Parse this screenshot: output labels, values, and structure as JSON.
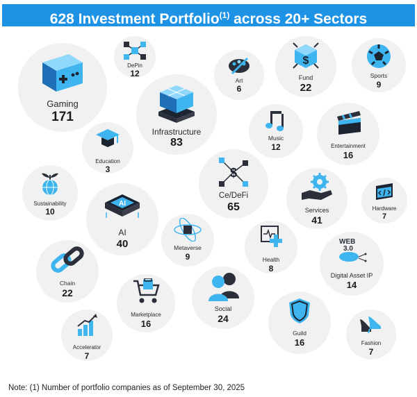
{
  "header": {
    "title_prefix": "628 Investment Portfolio",
    "title_superscript": "(1)",
    "title_suffix": " across 20+ Sectors"
  },
  "colors": {
    "banner": "#1e93e6",
    "bubble": "#f1f1f1",
    "icon_blue": "#3fb5f0",
    "icon_dark": "#2b2f3a"
  },
  "sectors": [
    {
      "key": "gaming",
      "name": "Gaming",
      "count": "171",
      "icon": "gamepad-icon"
    },
    {
      "key": "depin",
      "name": "DePin",
      "count": "12",
      "icon": "network-cubes-icon"
    },
    {
      "key": "art",
      "name": "Art",
      "count": "6",
      "icon": "palette-icon"
    },
    {
      "key": "fund",
      "name": "Fund",
      "count": "22",
      "icon": "dollar-coin-icon"
    },
    {
      "key": "sports",
      "name": "Sports",
      "count": "9",
      "icon": "soccer-ball-icon"
    },
    {
      "key": "infrastructure",
      "name": "Infrastructure",
      "count": "83",
      "icon": "server-cubes-icon"
    },
    {
      "key": "music",
      "name": "Music",
      "count": "12",
      "icon": "music-notes-icon"
    },
    {
      "key": "entertainment",
      "name": "Entertainment",
      "count": "16",
      "icon": "clapperboard-icon"
    },
    {
      "key": "education",
      "name": "Education",
      "count": "3",
      "icon": "graduation-cap-icon"
    },
    {
      "key": "cedefi",
      "name": "Ce/DeFi",
      "count": "65",
      "icon": "defi-nodes-icon"
    },
    {
      "key": "sustainability",
      "name": "Sustainability",
      "count": "10",
      "icon": "globe-sprout-icon"
    },
    {
      "key": "ai",
      "name": "AI",
      "count": "40",
      "icon": "ai-chip-icon"
    },
    {
      "key": "services",
      "name": "Services",
      "count": "41",
      "icon": "gear-hand-icon"
    },
    {
      "key": "hardware",
      "name": "Hardware",
      "count": "7",
      "icon": "code-window-icon"
    },
    {
      "key": "metaverse",
      "name": "Metaverse",
      "count": "9",
      "icon": "orbit-cube-icon"
    },
    {
      "key": "health",
      "name": "Health",
      "count": "8",
      "icon": "medical-cross-icon"
    },
    {
      "key": "digital_asset_ip",
      "name": "Digital Asset IP",
      "count": "14",
      "icon": "web3-cloud-icon"
    },
    {
      "key": "chain",
      "name": "Chain",
      "count": "22",
      "icon": "chain-link-icon"
    },
    {
      "key": "marketplace",
      "name": "Marketplace",
      "count": "16",
      "icon": "shopping-cart-icon"
    },
    {
      "key": "social",
      "name": "Social",
      "count": "24",
      "icon": "people-icon"
    },
    {
      "key": "guild",
      "name": "Guild",
      "count": "16",
      "icon": "shield-icon"
    },
    {
      "key": "accelerator",
      "name": "Accelerator",
      "count": "7",
      "icon": "growth-bars-icon"
    },
    {
      "key": "fashion",
      "name": "Fashion",
      "count": "7",
      "icon": "high-heels-icon"
    }
  ],
  "footnote": "Note: (1) Number of portfolio companies as of September 30, 2025"
}
